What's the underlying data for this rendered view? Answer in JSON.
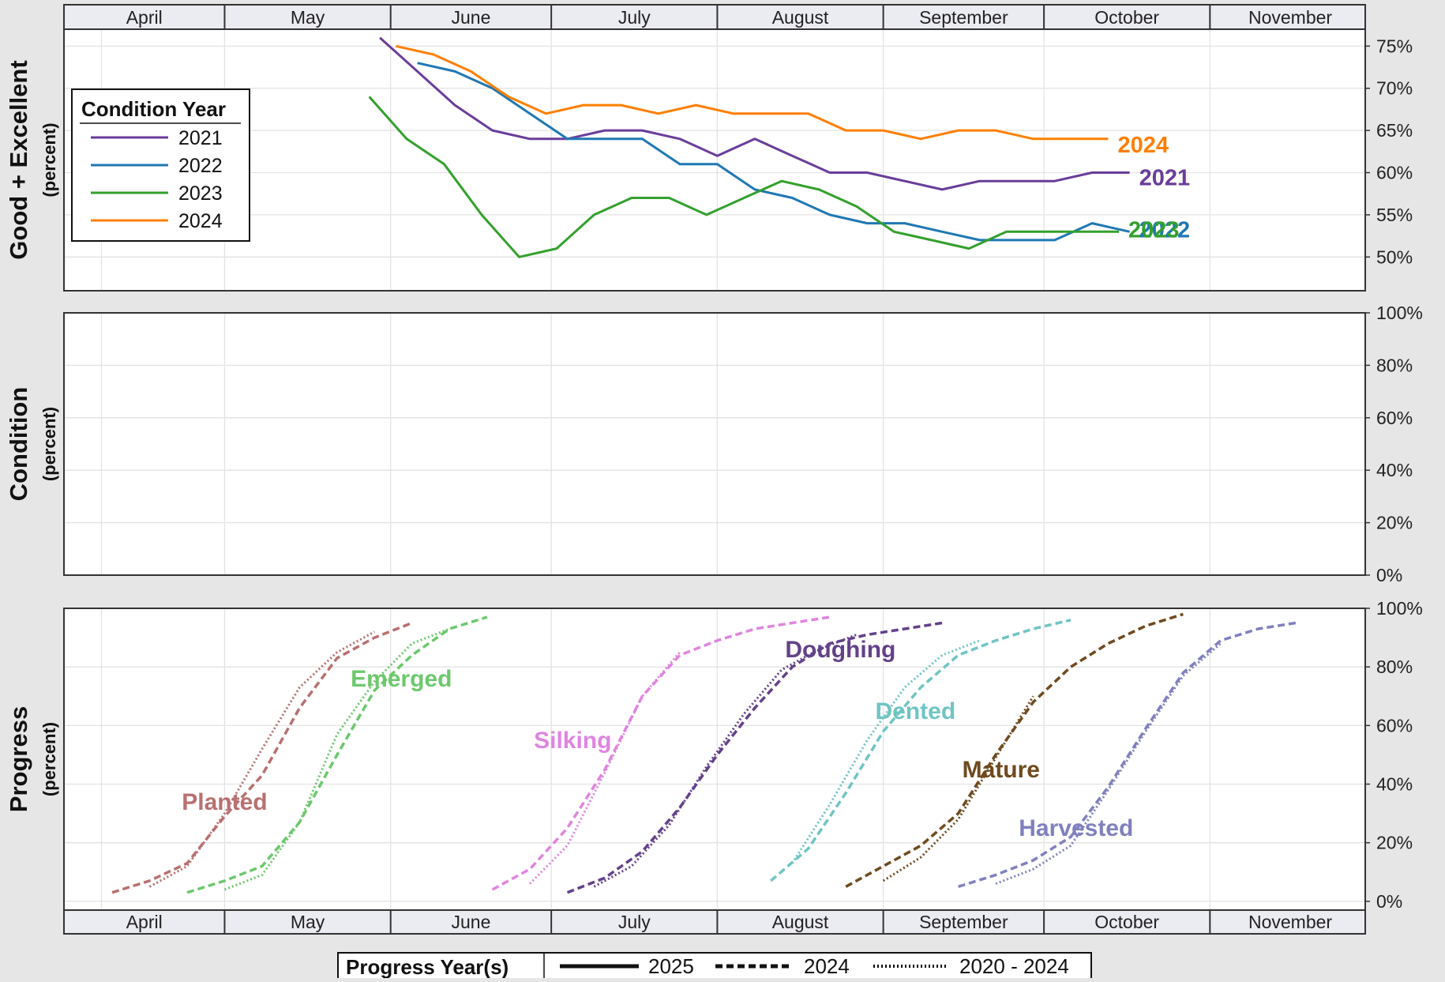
{
  "months": [
    "April",
    "May",
    "June",
    "July",
    "August",
    "September",
    "October",
    "November"
  ],
  "panel_titles": {
    "top": "Good + Excellent",
    "middle": "Condition",
    "bottom": "Progress",
    "unit": "(percent)"
  },
  "legend": {
    "title": "Condition Year",
    "progress_title": "Progress Year(s)",
    "progress_entries": [
      "2025",
      "2024",
      "2020 - 2024"
    ]
  },
  "colors": {
    "2021": "#6a3d9a",
    "2022": "#1f78b4",
    "2023": "#33a02c",
    "2024": "#ff7f00",
    "Planted": "#b87070",
    "Emerged": "#6cc86c",
    "Silking": "#e085e0",
    "Doughing": "#63418a",
    "Dented": "#70c4c4",
    "Mature": "#6e4a1e",
    "Harvested": "#8080bf"
  },
  "chart_data": [
    {
      "type": "line",
      "title": "Good + Excellent",
      "ylabel": "(percent)",
      "ylim": [
        46,
        77
      ],
      "yticks": [
        "50%",
        "55%",
        "60%",
        "65%",
        "70%",
        "75%"
      ],
      "x_axis": "date (Apr 1 - Nov 30)",
      "grid": true,
      "legend_placement": "top-left",
      "series": [
        {
          "name": "2021",
          "end_label": "2021",
          "x": [
            "05-30",
            "06-06",
            "06-13",
            "06-20",
            "06-27",
            "07-04",
            "07-11",
            "07-18",
            "07-25",
            "08-01",
            "08-08",
            "08-15",
            "08-22",
            "08-29",
            "09-05",
            "09-12",
            "09-19",
            "09-26",
            "10-03",
            "10-10",
            "10-17"
          ],
          "values": [
            76,
            72,
            68,
            65,
            64,
            64,
            65,
            65,
            64,
            62,
            64,
            62,
            60,
            60,
            59,
            58,
            59,
            59,
            59,
            60,
            60
          ]
        },
        {
          "name": "2022",
          "end_label": "2022",
          "x": [
            "06-06",
            "06-13",
            "06-20",
            "06-27",
            "07-04",
            "07-11",
            "07-18",
            "07-25",
            "08-01",
            "08-08",
            "08-15",
            "08-22",
            "08-29",
            "09-05",
            "09-12",
            "09-19",
            "09-26",
            "10-03",
            "10-10",
            "10-17"
          ],
          "values": [
            73,
            72,
            70,
            67,
            64,
            64,
            64,
            61,
            61,
            58,
            57,
            55,
            54,
            54,
            53,
            52,
            52,
            52,
            54,
            53
          ]
        },
        {
          "name": "2023",
          "end_label": "2023",
          "x": [
            "05-28",
            "06-04",
            "06-11",
            "06-18",
            "06-25",
            "07-02",
            "07-09",
            "07-16",
            "07-23",
            "07-30",
            "08-06",
            "08-13",
            "08-20",
            "08-27",
            "09-03",
            "09-10",
            "09-17",
            "09-24",
            "10-01",
            "10-08",
            "10-15"
          ],
          "values": [
            69,
            64,
            61,
            55,
            50,
            51,
            55,
            57,
            57,
            55,
            57,
            59,
            58,
            56,
            53,
            52,
            51,
            53,
            53,
            53,
            53
          ]
        },
        {
          "name": "2024",
          "end_label": "2024",
          "x": [
            "06-02",
            "06-09",
            "06-16",
            "06-23",
            "06-30",
            "07-07",
            "07-14",
            "07-21",
            "07-28",
            "08-04",
            "08-11",
            "08-18",
            "08-25",
            "09-01",
            "09-08",
            "09-15",
            "09-22",
            "09-29",
            "10-06",
            "10-13"
          ],
          "values": [
            75,
            74,
            72,
            69,
            67,
            68,
            68,
            67,
            68,
            67,
            67,
            67,
            65,
            65,
            64,
            65,
            65,
            64,
            64,
            64
          ]
        }
      ]
    },
    {
      "type": "bar",
      "title": "Condition",
      "ylabel": "(percent)",
      "ylim": [
        0,
        100
      ],
      "yticks": [
        "0%",
        "20%",
        "40%",
        "60%",
        "80%",
        "100%"
      ],
      "grid": true,
      "series": []
    },
    {
      "type": "line",
      "title": "Progress",
      "ylabel": "(percent)",
      "ylim": [
        -3,
        100
      ],
      "yticks": [
        "0%",
        "20%",
        "40%",
        "60%",
        "80%",
        "100%"
      ],
      "grid": true,
      "stages": [
        {
          "name": "Planted",
          "label_at": [
            "05-01",
            34
          ],
          "x_2024": [
            "04-10",
            "04-17",
            "04-24",
            "05-01",
            "05-08",
            "05-15",
            "05-22",
            "05-29",
            "06-05"
          ],
          "y_2024": [
            3,
            7,
            13,
            29,
            43,
            66,
            83,
            90,
            95
          ],
          "x_avg": [
            "04-17",
            "04-24",
            "05-01",
            "05-08",
            "05-15",
            "05-22",
            "05-29"
          ],
          "y_avg": [
            5,
            12,
            30,
            52,
            73,
            85,
            92
          ]
        },
        {
          "name": "Emerged",
          "label_at": [
            "06-03",
            76
          ],
          "x_2024": [
            "04-24",
            "05-01",
            "05-08",
            "05-15",
            "05-22",
            "05-29",
            "06-05",
            "06-12",
            "06-19"
          ],
          "y_2024": [
            3,
            7,
            12,
            27,
            50,
            72,
            84,
            93,
            97
          ],
          "x_avg": [
            "05-01",
            "05-08",
            "05-15",
            "05-22",
            "05-29",
            "06-05",
            "06-12"
          ],
          "y_avg": [
            4,
            9,
            27,
            57,
            75,
            88,
            93
          ]
        },
        {
          "name": "Silking",
          "label_at": [
            "07-05",
            55
          ],
          "x_2024": [
            "06-20",
            "06-27",
            "07-04",
            "07-11",
            "07-18",
            "07-25",
            "08-01",
            "08-08",
            "08-15",
            "08-22"
          ],
          "y_2024": [
            4,
            11,
            25,
            45,
            70,
            84,
            89,
            93,
            95,
            97
          ],
          "x_avg": [
            "06-27",
            "07-04",
            "07-11",
            "07-18",
            "07-25"
          ],
          "y_avg": [
            6,
            19,
            44,
            70,
            85
          ]
        },
        {
          "name": "Doughing",
          "label_at": [
            "08-24",
            86
          ],
          "x_2024": [
            "07-04",
            "07-11",
            "07-18",
            "07-25",
            "08-01",
            "08-08",
            "08-15",
            "08-22",
            "08-29",
            "09-05",
            "09-12"
          ],
          "y_2024": [
            3,
            8,
            17,
            32,
            50,
            66,
            80,
            88,
            91,
            93,
            95
          ],
          "x_avg": [
            "07-09",
            "07-16",
            "07-23",
            "07-30",
            "08-06",
            "08-13",
            "08-20",
            "08-27"
          ],
          "y_avg": [
            5,
            12,
            26,
            46,
            64,
            79,
            86,
            91
          ]
        },
        {
          "name": "Dented",
          "label_at": [
            "09-07",
            65
          ],
          "x_2024": [
            "08-11",
            "08-18",
            "08-25",
            "09-01",
            "09-08",
            "09-15",
            "09-22",
            "09-29",
            "10-06"
          ],
          "y_2024": [
            7,
            18,
            37,
            58,
            73,
            84,
            89,
            93,
            96
          ],
          "x_avg": [
            "08-15",
            "08-22",
            "08-29",
            "09-05",
            "09-12",
            "09-19"
          ],
          "y_avg": [
            13,
            33,
            55,
            73,
            84,
            89
          ]
        },
        {
          "name": "Mature",
          "label_at": [
            "09-23",
            45
          ],
          "x_2024": [
            "08-25",
            "09-01",
            "09-08",
            "09-15",
            "09-22",
            "09-29",
            "10-06",
            "10-13",
            "10-20",
            "10-27"
          ],
          "y_2024": [
            5,
            12,
            19,
            30,
            50,
            68,
            80,
            88,
            94,
            98
          ],
          "x_avg": [
            "09-01",
            "09-08",
            "09-15",
            "09-22",
            "09-29"
          ],
          "y_avg": [
            7,
            15,
            28,
            49,
            70
          ]
        },
        {
          "name": "Harvested",
          "label_at": [
            "10-07",
            25
          ],
          "x_2024": [
            "09-15",
            "09-22",
            "09-29",
            "10-06",
            "10-13",
            "10-20",
            "10-27",
            "11-03",
            "11-10",
            "11-17"
          ],
          "y_2024": [
            5,
            9,
            14,
            22,
            39,
            59,
            78,
            89,
            93,
            95
          ],
          "x_avg": [
            "09-22",
            "09-29",
            "10-06",
            "10-13",
            "10-20",
            "10-27",
            "11-03"
          ],
          "y_avg": [
            6,
            11,
            19,
            38,
            58,
            77,
            88
          ]
        }
      ]
    }
  ]
}
